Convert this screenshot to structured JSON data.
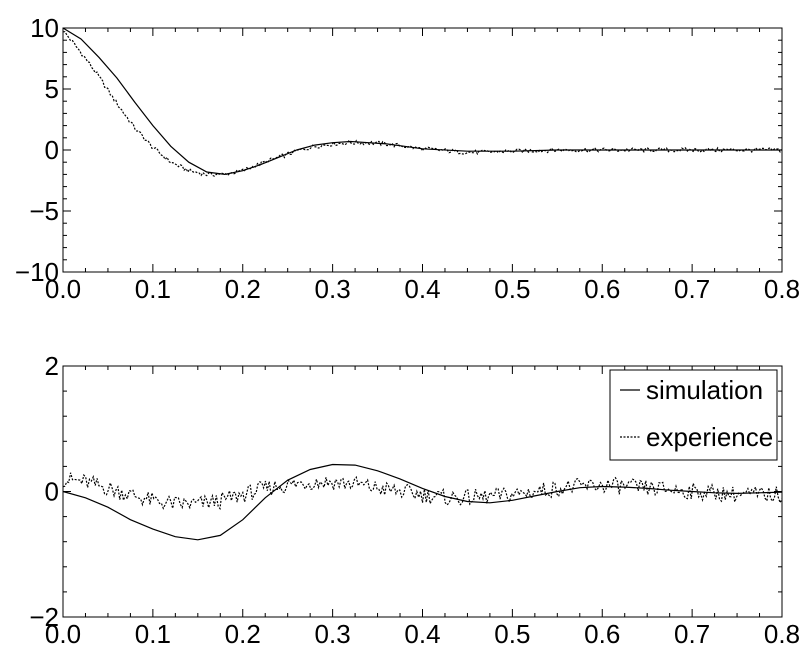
{
  "chart_data": [
    {
      "type": "line",
      "title": "",
      "xlabel": "",
      "ylabel": "",
      "xlim": [
        0,
        0.8
      ],
      "ylim": [
        -10,
        10
      ],
      "x_ticks": [
        "0.0",
        "0.1",
        "0.2",
        "0.3",
        "0.4",
        "0.5",
        "0.6",
        "0.7",
        "0.8"
      ],
      "y_ticks": [
        "10",
        "5",
        "0",
        "−5",
        "−10"
      ],
      "grid": false,
      "legend": false,
      "series": [
        {
          "style": "solid",
          "color": "#000000",
          "x": [
            0.0,
            0.02,
            0.04,
            0.06,
            0.08,
            0.1,
            0.12,
            0.14,
            0.16,
            0.18,
            0.2,
            0.22,
            0.24,
            0.26,
            0.28,
            0.3,
            0.32,
            0.34,
            0.36,
            0.38,
            0.4,
            0.45,
            0.5,
            0.55,
            0.6,
            0.65,
            0.7,
            0.75,
            0.8
          ],
          "y": [
            10.0,
            9.1,
            7.6,
            5.9,
            3.9,
            2.0,
            0.3,
            -1.0,
            -1.8,
            -2.0,
            -1.7,
            -1.2,
            -0.6,
            0.0,
            0.4,
            0.6,
            0.7,
            0.6,
            0.5,
            0.3,
            0.1,
            -0.1,
            -0.1,
            0.0,
            0.0,
            0.0,
            0.0,
            0.0,
            0.0
          ]
        },
        {
          "style": "dotted",
          "color": "#000000",
          "x": [
            0.0,
            0.02,
            0.04,
            0.06,
            0.08,
            0.1,
            0.12,
            0.14,
            0.16,
            0.18,
            0.2,
            0.22,
            0.24,
            0.26,
            0.28,
            0.3,
            0.32,
            0.34,
            0.36,
            0.38,
            0.4,
            0.45,
            0.5,
            0.55,
            0.6,
            0.65,
            0.7,
            0.75,
            0.8
          ],
          "y": [
            9.8,
            8.0,
            6.0,
            3.8,
            1.8,
            0.2,
            -1.0,
            -1.7,
            -2.0,
            -2.0,
            -1.7,
            -1.1,
            -0.6,
            -0.1,
            0.3,
            0.5,
            0.6,
            0.6,
            0.5,
            0.3,
            0.1,
            -0.2,
            -0.1,
            0.0,
            0.0,
            0.0,
            0.0,
            0.0,
            0.0
          ]
        }
      ]
    },
    {
      "type": "line",
      "title": "",
      "xlabel": "",
      "ylabel": "",
      "xlim": [
        0,
        0.8
      ],
      "ylim": [
        -2,
        2
      ],
      "x_ticks": [
        "0.0",
        "0.1",
        "0.2",
        "0.3",
        "0.4",
        "0.5",
        "0.6",
        "0.7",
        "0.8"
      ],
      "y_ticks": [
        "2",
        "0",
        "−2"
      ],
      "grid": false,
      "legend": true,
      "legend_position": "top-right",
      "series": [
        {
          "name": "simulation",
          "style": "solid",
          "color": "#000000",
          "x": [
            0.0,
            0.025,
            0.05,
            0.075,
            0.1,
            0.125,
            0.15,
            0.175,
            0.2,
            0.225,
            0.25,
            0.275,
            0.3,
            0.325,
            0.35,
            0.375,
            0.4,
            0.425,
            0.45,
            0.475,
            0.5,
            0.525,
            0.55,
            0.575,
            0.6,
            0.625,
            0.65,
            0.675,
            0.7,
            0.725,
            0.75,
            0.775,
            0.8
          ],
          "y": [
            0.0,
            -0.1,
            -0.25,
            -0.45,
            -0.6,
            -0.72,
            -0.77,
            -0.7,
            -0.45,
            -0.1,
            0.18,
            0.35,
            0.43,
            0.42,
            0.33,
            0.2,
            0.05,
            -0.08,
            -0.16,
            -0.18,
            -0.14,
            -0.07,
            0.0,
            0.06,
            0.08,
            0.07,
            0.05,
            0.02,
            0.0,
            -0.02,
            -0.03,
            -0.02,
            -0.01
          ]
        },
        {
          "name": "experience",
          "style": "dotted",
          "color": "#000000",
          "x": [
            0.0,
            0.025,
            0.05,
            0.075,
            0.1,
            0.125,
            0.15,
            0.175,
            0.2,
            0.225,
            0.25,
            0.275,
            0.3,
            0.325,
            0.35,
            0.375,
            0.4,
            0.425,
            0.45,
            0.475,
            0.5,
            0.525,
            0.55,
            0.575,
            0.6,
            0.625,
            0.65,
            0.675,
            0.7,
            0.725,
            0.75,
            0.775,
            0.8
          ],
          "y": [
            0.2,
            0.15,
            0.05,
            -0.05,
            -0.15,
            -0.2,
            -0.2,
            -0.15,
            -0.05,
            0.05,
            0.1,
            0.15,
            0.15,
            0.12,
            0.05,
            0.0,
            -0.05,
            -0.1,
            -0.1,
            -0.08,
            -0.05,
            0.0,
            0.05,
            0.08,
            0.1,
            0.08,
            0.05,
            0.03,
            0.0,
            -0.02,
            -0.05,
            -0.05,
            -0.05
          ]
        }
      ]
    }
  ]
}
